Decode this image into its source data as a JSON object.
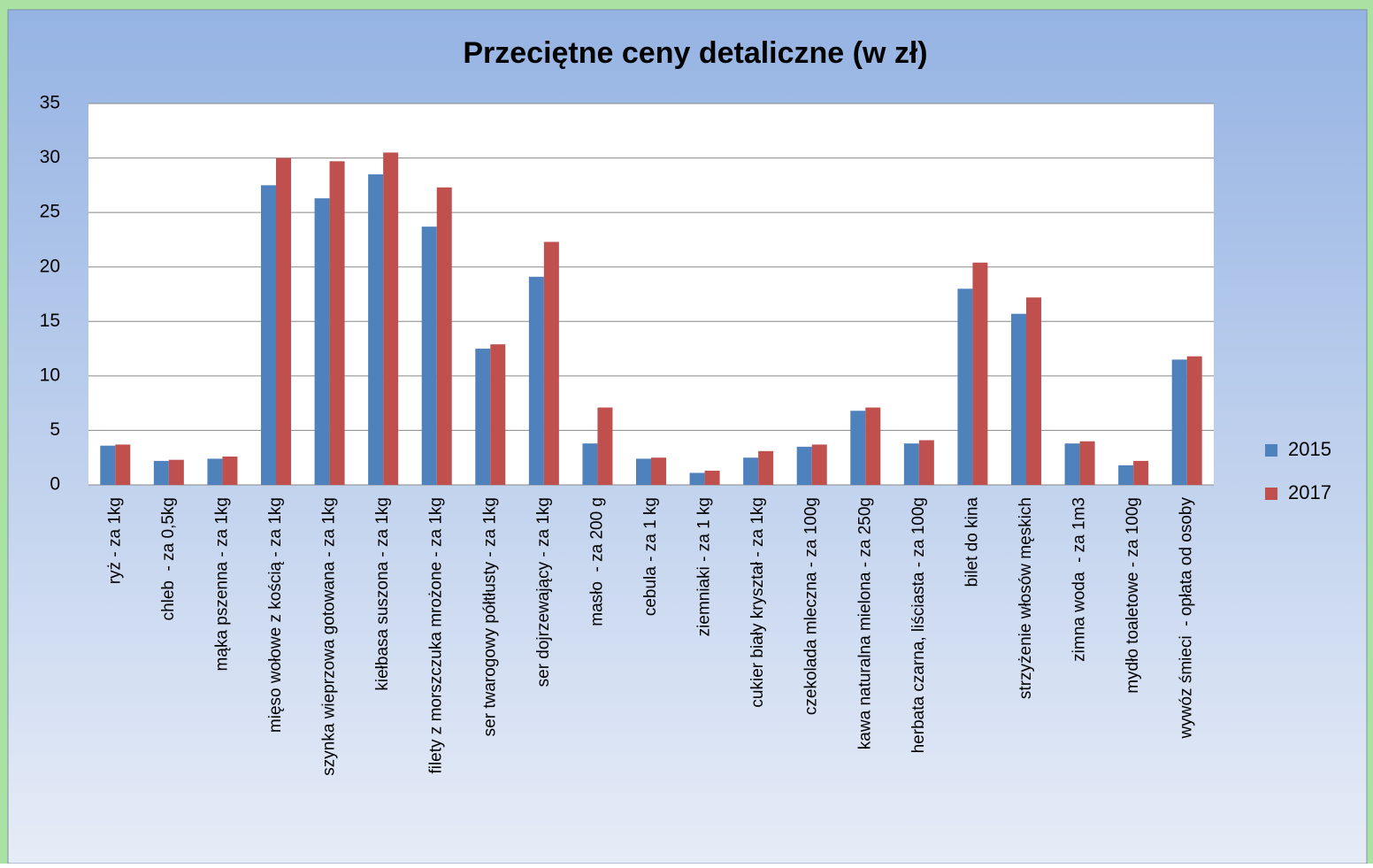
{
  "chart_data": {
    "type": "bar",
    "title": "Przeciętne ceny detaliczne (w zł)",
    "categories": [
      "ryż - za 1kg",
      "chleb  - za 0,5kg",
      "mąka pszenna - za 1kg",
      "mięso wołowe z kością - za 1kg",
      "szynka wieprzowa gotowana - za 1kg",
      "kiełbasa suszona - za 1kg",
      "filety z morszczuka mrożone - za 1kg",
      "ser twarogowy półtłusty - za 1kg",
      "ser dojrzewający - za 1kg",
      "masło  - za 200 g",
      "cebula - za 1 kg",
      "ziemniaki - za 1 kg",
      "cukier biały kryształ - za 1kg",
      "czekolada mleczna - za 100g",
      "kawa naturalna mielona - za 250g",
      "herbata czarna, liściasta - za 100g",
      "bilet do kina",
      "strzyżenie włosów męskich",
      "zimna woda  - za 1m3",
      "mydło toaletowe - za 100g",
      "wywóz śmieci  - opłata od osoby"
    ],
    "series": [
      {
        "name": "2015",
        "color": "#4f81bd",
        "values": [
          3.6,
          2.2,
          2.4,
          27.5,
          26.3,
          28.5,
          23.7,
          12.5,
          19.1,
          3.8,
          2.4,
          1.1,
          2.5,
          3.5,
          6.8,
          3.8,
          18.0,
          15.7,
          3.8,
          1.8,
          11.5
        ]
      },
      {
        "name": "2017",
        "color": "#c0504d",
        "values": [
          3.7,
          2.3,
          2.6,
          30.0,
          29.7,
          30.5,
          27.3,
          12.9,
          22.3,
          7.1,
          2.5,
          1.3,
          3.1,
          3.7,
          7.1,
          4.1,
          20.4,
          17.2,
          4.0,
          2.2,
          11.8
        ]
      }
    ],
    "ylim": [
      0,
      35
    ],
    "yticks": [
      0,
      5,
      10,
      15,
      20,
      25,
      30,
      35
    ],
    "grid": true,
    "legend": "right"
  }
}
